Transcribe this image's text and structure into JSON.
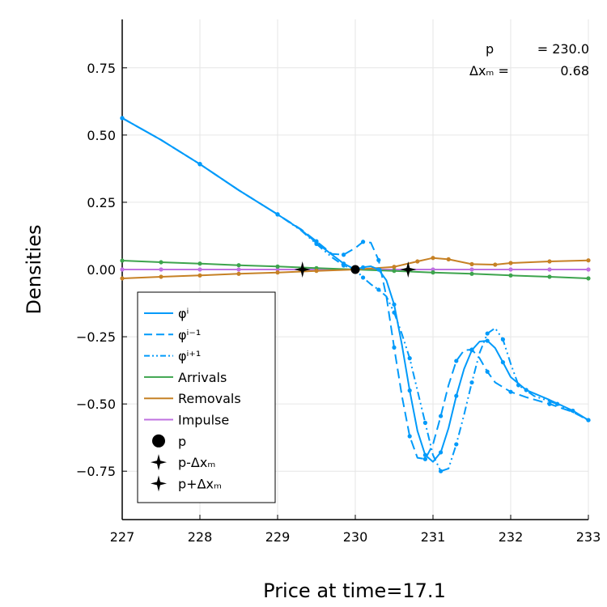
{
  "chart_data": {
    "type": "line",
    "xlabel": "Price at time=17.1",
    "ylabel": "Densities",
    "xlim": [
      227,
      233
    ],
    "ylim": [
      -0.93,
      0.93
    ],
    "xticks": [
      227,
      228,
      229,
      230,
      231,
      232,
      233
    ],
    "yticks": [
      -0.75,
      -0.5,
      -0.25,
      0.0,
      0.25,
      0.5,
      0.75
    ],
    "ytick_labels": [
      "−0.75",
      "−0.50",
      "−0.25",
      "0.00",
      "0.25",
      "0.50",
      "0.75"
    ],
    "grid": true,
    "legend_position": "bottom-left",
    "annotation": {
      "line1_label": "p",
      "line1_value": "= 230.0",
      "line2_label": "Δxₘ =",
      "line2_value": "0.68"
    },
    "series": [
      {
        "name": "φⁱ",
        "style": "solid",
        "color": "#009AFA",
        "points": [
          [
            227.0,
            0.563
          ],
          [
            227.5,
            0.482
          ],
          [
            228.0,
            0.392
          ],
          [
            228.5,
            0.295
          ],
          [
            229.0,
            0.205
          ],
          [
            229.3,
            0.148
          ],
          [
            229.5,
            0.1
          ],
          [
            229.7,
            0.055
          ],
          [
            229.85,
            0.022
          ],
          [
            230.0,
            0.0
          ],
          [
            230.1,
            0.008
          ],
          [
            230.2,
            0.012
          ],
          [
            230.3,
            0.0
          ],
          [
            230.4,
            -0.04
          ],
          [
            230.5,
            -0.13
          ],
          [
            230.6,
            -0.28
          ],
          [
            230.7,
            -0.45
          ],
          [
            230.8,
            -0.6
          ],
          [
            230.9,
            -0.69
          ],
          [
            231.0,
            -0.715
          ],
          [
            231.1,
            -0.68
          ],
          [
            231.2,
            -0.59
          ],
          [
            231.3,
            -0.47
          ],
          [
            231.4,
            -0.37
          ],
          [
            231.5,
            -0.3
          ],
          [
            231.6,
            -0.268
          ],
          [
            231.7,
            -0.265
          ],
          [
            231.8,
            -0.292
          ],
          [
            231.9,
            -0.345
          ],
          [
            232.0,
            -0.4
          ],
          [
            232.2,
            -0.448
          ],
          [
            232.5,
            -0.485
          ],
          [
            232.8,
            -0.525
          ],
          [
            233.0,
            -0.56
          ]
        ]
      },
      {
        "name": "φⁱ⁻¹",
        "style": "dash",
        "color": "#009AFA",
        "points": [
          [
            227.0,
            0.563
          ],
          [
            227.5,
            0.482
          ],
          [
            228.0,
            0.392
          ],
          [
            228.5,
            0.295
          ],
          [
            229.0,
            0.205
          ],
          [
            229.3,
            0.15
          ],
          [
            229.5,
            0.105
          ],
          [
            229.7,
            0.058
          ],
          [
            229.85,
            0.055
          ],
          [
            230.0,
            0.08
          ],
          [
            230.1,
            0.103
          ],
          [
            230.2,
            0.1
          ],
          [
            230.3,
            0.035
          ],
          [
            230.4,
            -0.1
          ],
          [
            230.5,
            -0.29
          ],
          [
            230.6,
            -0.47
          ],
          [
            230.7,
            -0.62
          ],
          [
            230.8,
            -0.7
          ],
          [
            230.9,
            -0.705
          ],
          [
            231.0,
            -0.65
          ],
          [
            231.1,
            -0.545
          ],
          [
            231.2,
            -0.43
          ],
          [
            231.3,
            -0.34
          ],
          [
            231.4,
            -0.3
          ],
          [
            231.5,
            -0.298
          ],
          [
            231.6,
            -0.33
          ],
          [
            231.7,
            -0.38
          ],
          [
            231.8,
            -0.42
          ],
          [
            232.0,
            -0.455
          ],
          [
            232.2,
            -0.475
          ],
          [
            232.5,
            -0.5
          ],
          [
            232.8,
            -0.53
          ],
          [
            233.0,
            -0.56
          ]
        ]
      },
      {
        "name": "φⁱ⁺¹",
        "style": "dashdotdot",
        "color": "#009AFA",
        "points": [
          [
            227.0,
            0.563
          ],
          [
            227.5,
            0.482
          ],
          [
            228.0,
            0.392
          ],
          [
            228.5,
            0.295
          ],
          [
            229.0,
            0.205
          ],
          [
            229.3,
            0.146
          ],
          [
            229.5,
            0.095
          ],
          [
            229.7,
            0.045
          ],
          [
            229.85,
            0.015
          ],
          [
            230.0,
            0.0
          ],
          [
            230.1,
            -0.03
          ],
          [
            230.2,
            -0.055
          ],
          [
            230.3,
            -0.075
          ],
          [
            230.4,
            -0.1
          ],
          [
            230.5,
            -0.16
          ],
          [
            230.6,
            -0.24
          ],
          [
            230.7,
            -0.33
          ],
          [
            230.8,
            -0.45
          ],
          [
            230.9,
            -0.57
          ],
          [
            231.0,
            -0.69
          ],
          [
            231.1,
            -0.75
          ],
          [
            231.2,
            -0.74
          ],
          [
            231.3,
            -0.65
          ],
          [
            231.4,
            -0.54
          ],
          [
            231.5,
            -0.42
          ],
          [
            231.6,
            -0.31
          ],
          [
            231.7,
            -0.238
          ],
          [
            231.8,
            -0.218
          ],
          [
            231.9,
            -0.26
          ],
          [
            232.0,
            -0.35
          ],
          [
            232.1,
            -0.43
          ],
          [
            232.3,
            -0.47
          ],
          [
            232.6,
            -0.5
          ],
          [
            232.8,
            -0.53
          ],
          [
            233.0,
            -0.56
          ]
        ]
      },
      {
        "name": "Arrivals",
        "style": "solid",
        "color": "#3DA44D",
        "points": [
          [
            227.0,
            0.033
          ],
          [
            227.5,
            0.027
          ],
          [
            228.0,
            0.022
          ],
          [
            228.5,
            0.016
          ],
          [
            229.0,
            0.011
          ],
          [
            229.5,
            0.005
          ],
          [
            230.0,
            0.0
          ],
          [
            230.5,
            -0.005
          ],
          [
            231.0,
            -0.011
          ],
          [
            231.5,
            -0.016
          ],
          [
            232.0,
            -0.022
          ],
          [
            232.5,
            -0.027
          ],
          [
            233.0,
            -0.033
          ]
        ]
      },
      {
        "name": "Removals",
        "style": "solid",
        "color": "#C68125",
        "points": [
          [
            227.0,
            -0.033
          ],
          [
            227.5,
            -0.027
          ],
          [
            228.0,
            -0.022
          ],
          [
            228.5,
            -0.016
          ],
          [
            229.0,
            -0.011
          ],
          [
            229.5,
            -0.005
          ],
          [
            230.0,
            0.0
          ],
          [
            230.5,
            0.01
          ],
          [
            230.8,
            0.03
          ],
          [
            231.0,
            0.043
          ],
          [
            231.2,
            0.038
          ],
          [
            231.5,
            0.02
          ],
          [
            231.8,
            0.018
          ],
          [
            232.0,
            0.024
          ],
          [
            232.5,
            0.03
          ],
          [
            233.0,
            0.034
          ]
        ]
      },
      {
        "name": "Impulse",
        "style": "solid",
        "color": "#BF72E0",
        "points": [
          [
            227.0,
            0.0
          ],
          [
            227.5,
            0.0
          ],
          [
            228.0,
            0.0
          ],
          [
            228.5,
            0.0
          ],
          [
            229.0,
            0.0
          ],
          [
            229.5,
            0.0
          ],
          [
            230.0,
            0.0
          ],
          [
            230.5,
            0.0
          ],
          [
            231.0,
            0.0
          ],
          [
            231.5,
            0.0
          ],
          [
            232.0,
            0.0
          ],
          [
            232.5,
            0.0
          ],
          [
            233.0,
            0.0
          ]
        ]
      }
    ],
    "markers": [
      {
        "name": "p",
        "shape": "circle",
        "color": "#000000",
        "x": 230.0,
        "y": 0.0
      },
      {
        "name": "p-Δxₘ",
        "shape": "star4",
        "color": "#000000",
        "x": 229.32,
        "y": 0.0
      },
      {
        "name": "p+Δxₘ",
        "shape": "star4",
        "color": "#000000",
        "x": 230.68,
        "y": 0.0
      }
    ]
  }
}
